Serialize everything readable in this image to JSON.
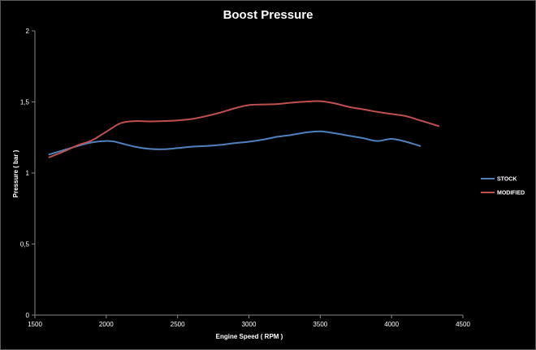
{
  "chart_data": {
    "type": "line",
    "title": "Boost Pressure",
    "xlabel": "Engine Speed ( RPM )",
    "ylabel": "Pressure  ( bar )",
    "xlim": [
      1500,
      4500
    ],
    "ylim": [
      0,
      2
    ],
    "x_ticks": [
      "1500",
      "2000",
      "2500",
      "3000",
      "3500",
      "4000",
      "4500"
    ],
    "x_tick_values": [
      1500,
      2000,
      2500,
      3000,
      3500,
      4000,
      4500
    ],
    "y_ticks": [
      "0",
      "0,5",
      "1",
      "1,5",
      "2"
    ],
    "y_tick_values": [
      0,
      0.5,
      1,
      1.5,
      2
    ],
    "grid": false,
    "legend_position": "right",
    "series": [
      {
        "name": "STOCK",
        "color": "#4f81bd",
        "x": [
          1600,
          1700,
          1800,
          1900,
          2000,
          2050,
          2100,
          2200,
          2300,
          2400,
          2500,
          2600,
          2700,
          2800,
          2900,
          3000,
          3100,
          3200,
          3300,
          3400,
          3500,
          3600,
          3700,
          3800,
          3900,
          4000,
          4100,
          4200
        ],
        "y": [
          1.13,
          1.16,
          1.19,
          1.215,
          1.225,
          1.222,
          1.21,
          1.185,
          1.17,
          1.167,
          1.175,
          1.185,
          1.19,
          1.198,
          1.21,
          1.22,
          1.235,
          1.255,
          1.268,
          1.285,
          1.293,
          1.28,
          1.262,
          1.245,
          1.225,
          1.24,
          1.22,
          1.19
        ]
      },
      {
        "name": "MODIFIED",
        "color": "#c0504d",
        "x": [
          1600,
          1700,
          1800,
          1900,
          2000,
          2100,
          2200,
          2300,
          2400,
          2500,
          2600,
          2700,
          2800,
          2900,
          3000,
          3100,
          3200,
          3300,
          3400,
          3500,
          3600,
          3700,
          3800,
          3900,
          4000,
          4100,
          4200,
          4330
        ],
        "y": [
          1.11,
          1.15,
          1.195,
          1.23,
          1.29,
          1.35,
          1.365,
          1.363,
          1.365,
          1.37,
          1.38,
          1.4,
          1.425,
          1.455,
          1.478,
          1.482,
          1.485,
          1.495,
          1.502,
          1.505,
          1.49,
          1.465,
          1.448,
          1.43,
          1.415,
          1.4,
          1.37,
          1.33
        ]
      }
    ]
  }
}
